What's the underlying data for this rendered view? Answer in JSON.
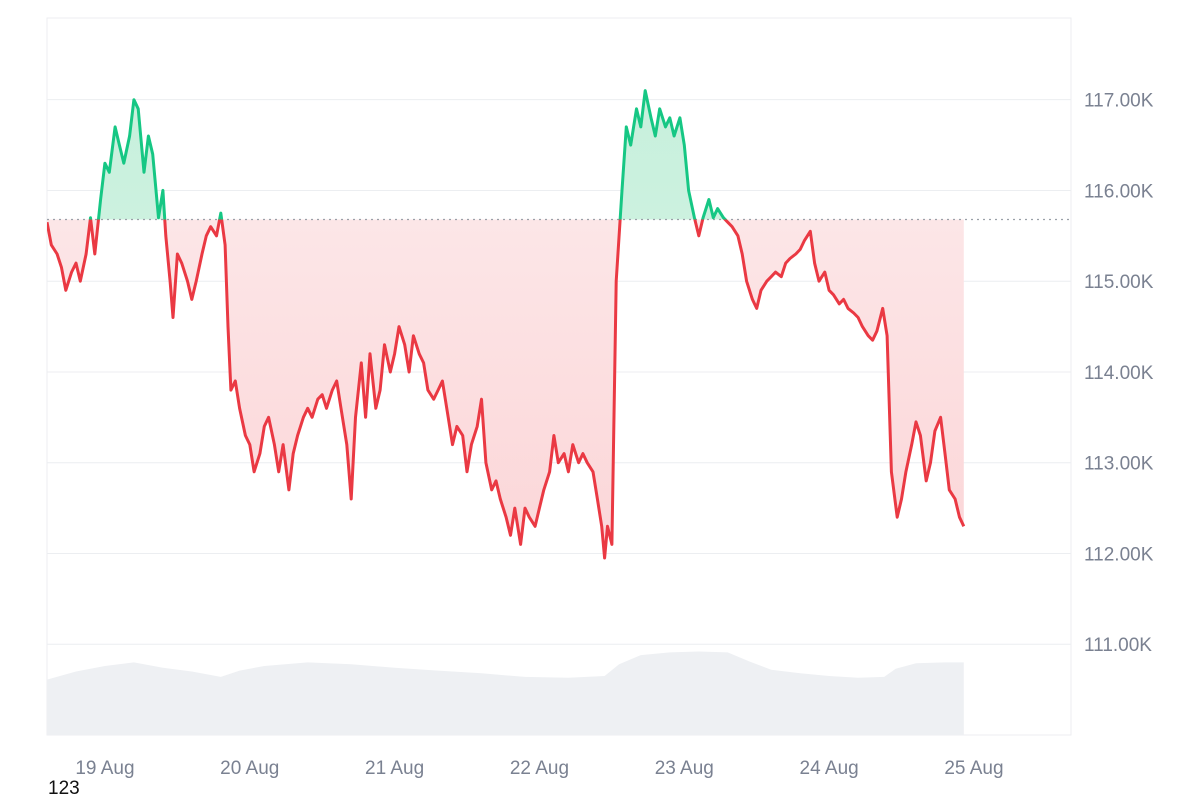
{
  "chart_data": {
    "type": "area",
    "title": "",
    "xlabel": "",
    "ylabel": "",
    "ylim": [
      110000,
      117900
    ],
    "yticks": [
      111000,
      112000,
      113000,
      114000,
      115000,
      116000,
      117000
    ],
    "ytick_labels": [
      "111.00K",
      "112.00K",
      "113.00K",
      "114.00K",
      "115.00K",
      "116.00K",
      "117.00K"
    ],
    "xlim_day": [
      18.6,
      25.67
    ],
    "xticks": [
      19,
      20,
      21,
      22,
      23,
      24,
      25
    ],
    "xtick_labels": [
      "19 Aug",
      "20 Aug",
      "21 Aug",
      "22 Aug",
      "23 Aug",
      "24 Aug",
      "25 Aug"
    ],
    "baseline": 115680,
    "colors": {
      "above": "#16c784",
      "above_fill": "#c7f0dc",
      "below": "#ea3943",
      "below_fill": "#fbd6d8",
      "volume": "#eef0f3",
      "grid": "#eceef1",
      "baseline": "#9aa0a8"
    },
    "grid": true,
    "series": [
      {
        "values": [
          [
            18.6,
            115650
          ],
          [
            18.63,
            115400
          ],
          [
            18.67,
            115300
          ],
          [
            18.7,
            115150
          ],
          [
            18.73,
            114900
          ],
          [
            18.77,
            115100
          ],
          [
            18.8,
            115200
          ],
          [
            18.83,
            115000
          ],
          [
            18.87,
            115300
          ],
          [
            18.9,
            115700
          ],
          [
            18.93,
            115300
          ],
          [
            18.97,
            115900
          ],
          [
            19.0,
            116300
          ],
          [
            19.03,
            116200
          ],
          [
            19.07,
            116700
          ],
          [
            19.1,
            116500
          ],
          [
            19.13,
            116300
          ],
          [
            19.17,
            116600
          ],
          [
            19.2,
            117000
          ],
          [
            19.23,
            116900
          ],
          [
            19.27,
            116200
          ],
          [
            19.3,
            116600
          ],
          [
            19.33,
            116400
          ],
          [
            19.37,
            115700
          ],
          [
            19.4,
            116000
          ],
          [
            19.42,
            115500
          ],
          [
            19.45,
            115000
          ],
          [
            19.47,
            114600
          ],
          [
            19.5,
            115300
          ],
          [
            19.53,
            115200
          ],
          [
            19.57,
            115000
          ],
          [
            19.6,
            114800
          ],
          [
            19.63,
            115000
          ],
          [
            19.67,
            115300
          ],
          [
            19.7,
            115500
          ],
          [
            19.73,
            115600
          ],
          [
            19.77,
            115500
          ],
          [
            19.8,
            115750
          ],
          [
            19.83,
            115400
          ],
          [
            19.85,
            114500
          ],
          [
            19.87,
            113800
          ],
          [
            19.9,
            113900
          ],
          [
            19.93,
            113600
          ],
          [
            19.97,
            113300
          ],
          [
            20.0,
            113200
          ],
          [
            20.03,
            112900
          ],
          [
            20.07,
            113100
          ],
          [
            20.1,
            113400
          ],
          [
            20.13,
            113500
          ],
          [
            20.17,
            113200
          ],
          [
            20.2,
            112900
          ],
          [
            20.23,
            113200
          ],
          [
            20.27,
            112700
          ],
          [
            20.3,
            113100
          ],
          [
            20.33,
            113300
          ],
          [
            20.37,
            113500
          ],
          [
            20.4,
            113600
          ],
          [
            20.43,
            113500
          ],
          [
            20.47,
            113700
          ],
          [
            20.5,
            113750
          ],
          [
            20.53,
            113600
          ],
          [
            20.57,
            113800
          ],
          [
            20.6,
            113900
          ],
          [
            20.63,
            113600
          ],
          [
            20.67,
            113200
          ],
          [
            20.7,
            112600
          ],
          [
            20.73,
            113500
          ],
          [
            20.77,
            114100
          ],
          [
            20.8,
            113500
          ],
          [
            20.83,
            114200
          ],
          [
            20.87,
            113600
          ],
          [
            20.9,
            113800
          ],
          [
            20.93,
            114300
          ],
          [
            20.97,
            114000
          ],
          [
            21.0,
            114200
          ],
          [
            21.03,
            114500
          ],
          [
            21.07,
            114300
          ],
          [
            21.1,
            114000
          ],
          [
            21.13,
            114400
          ],
          [
            21.17,
            114200
          ],
          [
            21.2,
            114100
          ],
          [
            21.23,
            113800
          ],
          [
            21.27,
            113700
          ],
          [
            21.3,
            113800
          ],
          [
            21.33,
            113900
          ],
          [
            21.37,
            113500
          ],
          [
            21.4,
            113200
          ],
          [
            21.43,
            113400
          ],
          [
            21.47,
            113300
          ],
          [
            21.5,
            112900
          ],
          [
            21.53,
            113200
          ],
          [
            21.57,
            113400
          ],
          [
            21.6,
            113700
          ],
          [
            21.63,
            113000
          ],
          [
            21.67,
            112700
          ],
          [
            21.7,
            112800
          ],
          [
            21.73,
            112600
          ],
          [
            21.77,
            112400
          ],
          [
            21.8,
            112200
          ],
          [
            21.83,
            112500
          ],
          [
            21.87,
            112100
          ],
          [
            21.9,
            112500
          ],
          [
            21.93,
            112400
          ],
          [
            21.97,
            112300
          ],
          [
            22.0,
            112500
          ],
          [
            22.03,
            112700
          ],
          [
            22.07,
            112900
          ],
          [
            22.1,
            113300
          ],
          [
            22.13,
            113000
          ],
          [
            22.17,
            113100
          ],
          [
            22.2,
            112900
          ],
          [
            22.23,
            113200
          ],
          [
            22.27,
            113000
          ],
          [
            22.3,
            113100
          ],
          [
            22.33,
            113000
          ],
          [
            22.37,
            112900
          ],
          [
            22.4,
            112600
          ],
          [
            22.43,
            112300
          ],
          [
            22.45,
            111950
          ],
          [
            22.47,
            112300
          ],
          [
            22.5,
            112100
          ],
          [
            22.53,
            115000
          ],
          [
            22.57,
            116000
          ],
          [
            22.6,
            116700
          ],
          [
            22.63,
            116500
          ],
          [
            22.67,
            116900
          ],
          [
            22.7,
            116700
          ],
          [
            22.73,
            117100
          ],
          [
            22.77,
            116800
          ],
          [
            22.8,
            116600
          ],
          [
            22.83,
            116900
          ],
          [
            22.87,
            116700
          ],
          [
            22.9,
            116800
          ],
          [
            22.93,
            116600
          ],
          [
            22.97,
            116800
          ],
          [
            23.0,
            116500
          ],
          [
            23.03,
            116000
          ],
          [
            23.07,
            115700
          ],
          [
            23.1,
            115500
          ],
          [
            23.13,
            115700
          ],
          [
            23.17,
            115900
          ],
          [
            23.2,
            115700
          ],
          [
            23.23,
            115800
          ],
          [
            23.27,
            115700
          ],
          [
            23.3,
            115650
          ],
          [
            23.33,
            115600
          ],
          [
            23.37,
            115500
          ],
          [
            23.4,
            115300
          ],
          [
            23.43,
            115000
          ],
          [
            23.47,
            114800
          ],
          [
            23.5,
            114700
          ],
          [
            23.53,
            114900
          ],
          [
            23.57,
            115000
          ],
          [
            23.6,
            115050
          ],
          [
            23.63,
            115100
          ],
          [
            23.67,
            115050
          ],
          [
            23.7,
            115200
          ],
          [
            23.73,
            115250
          ],
          [
            23.77,
            115300
          ],
          [
            23.8,
            115350
          ],
          [
            23.83,
            115450
          ],
          [
            23.87,
            115550
          ],
          [
            23.9,
            115200
          ],
          [
            23.93,
            115000
          ],
          [
            23.97,
            115100
          ],
          [
            24.0,
            114900
          ],
          [
            24.03,
            114850
          ],
          [
            24.07,
            114750
          ],
          [
            24.1,
            114800
          ],
          [
            24.13,
            114700
          ],
          [
            24.17,
            114650
          ],
          [
            24.2,
            114600
          ],
          [
            24.23,
            114500
          ],
          [
            24.27,
            114400
          ],
          [
            24.3,
            114350
          ],
          [
            24.33,
            114450
          ],
          [
            24.37,
            114700
          ],
          [
            24.4,
            114400
          ],
          [
            24.43,
            112900
          ],
          [
            24.47,
            112400
          ],
          [
            24.5,
            112600
          ],
          [
            24.53,
            112900
          ],
          [
            24.57,
            113200
          ],
          [
            24.6,
            113450
          ],
          [
            24.63,
            113300
          ],
          [
            24.67,
            112800
          ],
          [
            24.7,
            113000
          ],
          [
            24.73,
            113350
          ],
          [
            24.77,
            113500
          ],
          [
            24.8,
            113100
          ],
          [
            24.83,
            112700
          ],
          [
            24.87,
            112600
          ],
          [
            24.9,
            112400
          ],
          [
            24.93,
            112300
          ]
        ]
      }
    ],
    "volume": [
      [
        18.6,
        110610
      ],
      [
        18.8,
        110700
      ],
      [
        19.0,
        110760
      ],
      [
        19.2,
        110800
      ],
      [
        19.4,
        110740
      ],
      [
        19.6,
        110700
      ],
      [
        19.8,
        110640
      ],
      [
        19.93,
        110710
      ],
      [
        20.1,
        110760
      ],
      [
        20.4,
        110800
      ],
      [
        20.7,
        110780
      ],
      [
        21.0,
        110740
      ],
      [
        21.3,
        110710
      ],
      [
        21.6,
        110680
      ],
      [
        21.9,
        110640
      ],
      [
        22.2,
        110630
      ],
      [
        22.45,
        110650
      ],
      [
        22.55,
        110780
      ],
      [
        22.7,
        110880
      ],
      [
        22.9,
        110910
      ],
      [
        23.1,
        110920
      ],
      [
        23.3,
        110910
      ],
      [
        23.45,
        110810
      ],
      [
        23.6,
        110720
      ],
      [
        23.8,
        110680
      ],
      [
        24.0,
        110650
      ],
      [
        24.2,
        110630
      ],
      [
        24.38,
        110640
      ],
      [
        24.46,
        110730
      ],
      [
        24.6,
        110790
      ],
      [
        24.8,
        110800
      ],
      [
        24.93,
        110800
      ]
    ]
  },
  "footer": {
    "text": "123"
  }
}
